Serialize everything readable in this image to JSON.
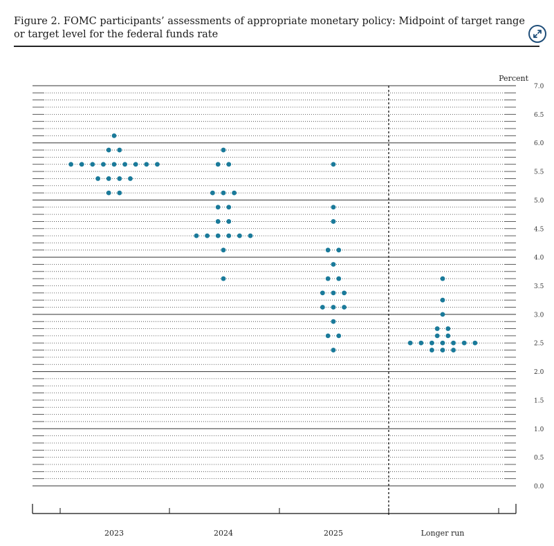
{
  "caption": "Figure 2.  FOMC participants’ assessments of appropriate monetary policy: Midpoint of target range or target level for the federal funds rate",
  "expand_icon": "expand-arrows-icon",
  "colors": {
    "dot": "#1a7a9a",
    "grid": "#333333",
    "axis": "#111111"
  },
  "chart_data": {
    "type": "scatter",
    "unit_label": "Percent",
    "categories": [
      "2023",
      "2024",
      "2025",
      "Longer run"
    ],
    "ylim": [
      0.0,
      7.0
    ],
    "ytick_labels": [
      "0.0",
      "0.5",
      "1.0",
      "1.5",
      "2.0",
      "2.5",
      "3.0",
      "3.5",
      "4.0",
      "4.5",
      "5.0",
      "5.5",
      "6.0",
      "6.5",
      "7.0"
    ],
    "grid": "dotted at every 0.125, solid at whole numbers",
    "separator": "dashed vertical line between 2025 and Longer run",
    "dots": {
      "2023": [
        {
          "value": 6.125,
          "count": 1
        },
        {
          "value": 5.875,
          "count": 2
        },
        {
          "value": 5.625,
          "count": 9
        },
        {
          "value": 5.375,
          "count": 4
        },
        {
          "value": 5.125,
          "count": 2
        }
      ],
      "2024": [
        {
          "value": 5.875,
          "count": 1
        },
        {
          "value": 5.625,
          "count": 2
        },
        {
          "value": 5.125,
          "count": 3
        },
        {
          "value": 4.875,
          "count": 2
        },
        {
          "value": 4.625,
          "count": 2
        },
        {
          "value": 4.375,
          "count": 6
        },
        {
          "value": 4.125,
          "count": 1
        },
        {
          "value": 3.625,
          "count": 1
        }
      ],
      "2025": [
        {
          "value": 5.625,
          "count": 1
        },
        {
          "value": 4.875,
          "count": 1
        },
        {
          "value": 4.625,
          "count": 1
        },
        {
          "value": 4.125,
          "count": 2
        },
        {
          "value": 3.875,
          "count": 1
        },
        {
          "value": 3.625,
          "count": 2
        },
        {
          "value": 3.375,
          "count": 3
        },
        {
          "value": 3.125,
          "count": 3
        },
        {
          "value": 2.875,
          "count": 1
        },
        {
          "value": 2.625,
          "count": 2
        },
        {
          "value": 2.375,
          "count": 1
        }
      ],
      "Longer run": [
        {
          "value": 3.625,
          "count": 1
        },
        {
          "value": 3.25,
          "count": 1
        },
        {
          "value": 3.0,
          "count": 1
        },
        {
          "value": 2.75,
          "count": 2
        },
        {
          "value": 2.625,
          "count": 2
        },
        {
          "value": 2.5,
          "count": 7
        },
        {
          "value": 2.375,
          "count": 3
        }
      ]
    }
  }
}
